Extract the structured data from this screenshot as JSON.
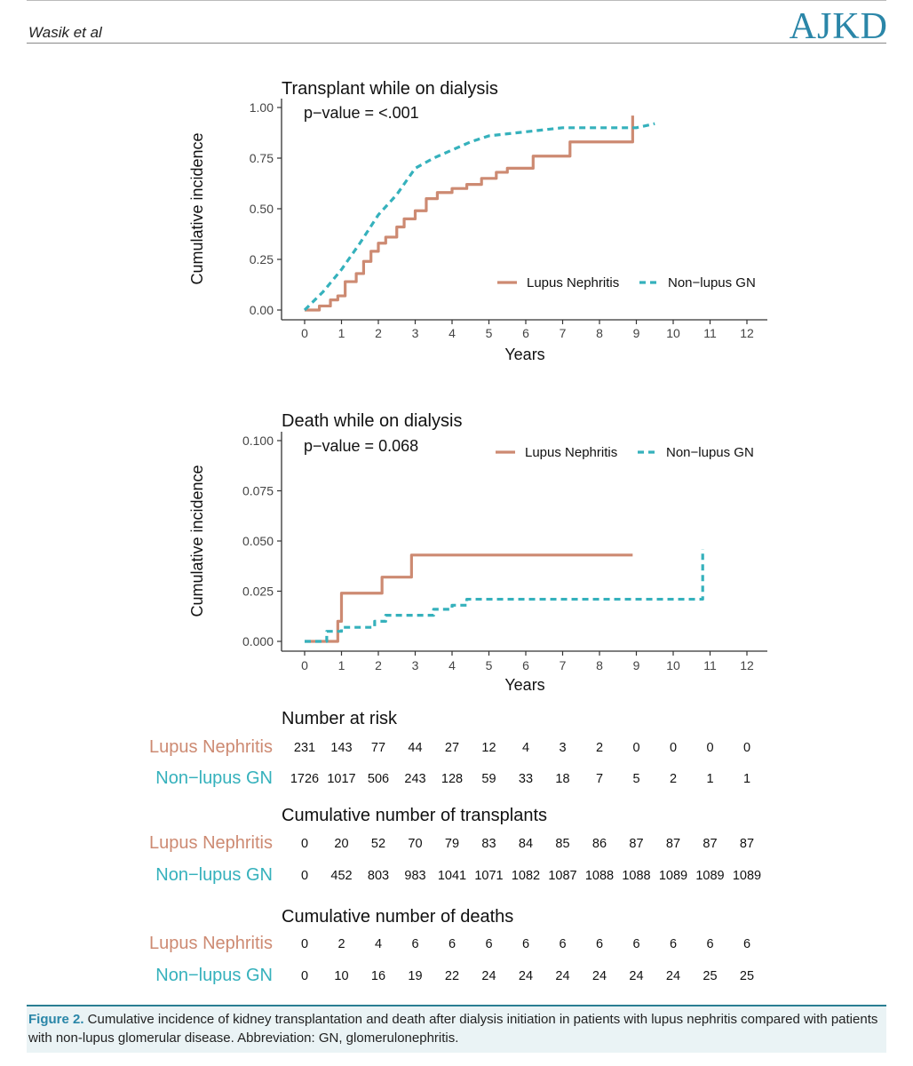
{
  "header": {
    "author": "Wasik et al",
    "journal": "AJKD"
  },
  "colors": {
    "lupus": "#cd8a72",
    "nonlupus": "#35b1bc",
    "axis": "#333333"
  },
  "chart_data": [
    {
      "type": "line",
      "title": "Transplant while on dialysis",
      "annotation": "p−value = <.001",
      "xlabel": "Years",
      "ylabel": "Cumulative incidence",
      "xlim": [
        0,
        12
      ],
      "ylim": [
        0,
        1
      ],
      "xticks": [
        "0",
        "1",
        "2",
        "3",
        "4",
        "5",
        "6",
        "7",
        "8",
        "9",
        "10",
        "11",
        "12"
      ],
      "yticks": [
        "0.00",
        "0.25",
        "0.50",
        "0.75",
        "1.00"
      ],
      "legend_position": "bottom-right",
      "series": [
        {
          "name": "Lupus Nephritis",
          "style": "solid",
          "step": true,
          "points": [
            [
              0,
              0
            ],
            [
              0.4,
              0.02
            ],
            [
              0.7,
              0.05
            ],
            [
              0.9,
              0.07
            ],
            [
              1.1,
              0.14
            ],
            [
              1.4,
              0.18
            ],
            [
              1.6,
              0.24
            ],
            [
              1.8,
              0.29
            ],
            [
              2.0,
              0.33
            ],
            [
              2.2,
              0.36
            ],
            [
              2.5,
              0.41
            ],
            [
              2.7,
              0.45
            ],
            [
              3.0,
              0.49
            ],
            [
              3.3,
              0.55
            ],
            [
              3.6,
              0.58
            ],
            [
              4.0,
              0.6
            ],
            [
              4.4,
              0.62
            ],
            [
              4.8,
              0.65
            ],
            [
              5.2,
              0.68
            ],
            [
              5.5,
              0.7
            ],
            [
              6.2,
              0.76
            ],
            [
              7.2,
              0.83
            ],
            [
              8.9,
              0.83
            ],
            [
              8.9,
              0.96
            ]
          ]
        },
        {
          "name": "Non−lupus GN",
          "style": "dashed",
          "step": false,
          "points": [
            [
              0,
              0
            ],
            [
              0.5,
              0.09
            ],
            [
              1.0,
              0.2
            ],
            [
              1.5,
              0.33
            ],
            [
              2.0,
              0.47
            ],
            [
              2.5,
              0.57
            ],
            [
              3.0,
              0.7
            ],
            [
              3.5,
              0.75
            ],
            [
              4.0,
              0.79
            ],
            [
              4.5,
              0.83
            ],
            [
              5.0,
              0.86
            ],
            [
              5.5,
              0.87
            ],
            [
              6.0,
              0.88
            ],
            [
              6.5,
              0.89
            ],
            [
              7.0,
              0.9
            ],
            [
              8.0,
              0.9
            ],
            [
              9.0,
              0.9
            ],
            [
              9.5,
              0.92
            ]
          ]
        }
      ]
    },
    {
      "type": "line",
      "title": "Death while on dialysis",
      "annotation": "p−value = 0.068",
      "xlabel": "Years",
      "ylabel": "Cumulative incidence",
      "xlim": [
        0,
        12
      ],
      "ylim": [
        0,
        0.1
      ],
      "xticks": [
        "0",
        "1",
        "2",
        "3",
        "4",
        "5",
        "6",
        "7",
        "8",
        "9",
        "10",
        "11",
        "12"
      ],
      "yticks": [
        "0.000",
        "0.025",
        "0.050",
        "0.075",
        "0.100"
      ],
      "legend_position": "top-right",
      "series": [
        {
          "name": "Lupus Nephritis",
          "style": "solid",
          "step": true,
          "points": [
            [
              0,
              0
            ],
            [
              0.9,
              0
            ],
            [
              0.9,
              0.01
            ],
            [
              1.0,
              0.01
            ],
            [
              1.0,
              0.024
            ],
            [
              2.1,
              0.024
            ],
            [
              2.1,
              0.032
            ],
            [
              2.9,
              0.032
            ],
            [
              2.9,
              0.043
            ],
            [
              8.9,
              0.043
            ]
          ]
        },
        {
          "name": "Non−lupus GN",
          "style": "dashed",
          "step": true,
          "points": [
            [
              0,
              0
            ],
            [
              0.6,
              0.005
            ],
            [
              1.0,
              0.007
            ],
            [
              1.7,
              0.007
            ],
            [
              1.9,
              0.01
            ],
            [
              2.2,
              0.013
            ],
            [
              3.2,
              0.013
            ],
            [
              3.5,
              0.016
            ],
            [
              4.0,
              0.018
            ],
            [
              4.4,
              0.021
            ],
            [
              10.8,
              0.021
            ],
            [
              10.8,
              0.046
            ]
          ]
        }
      ]
    }
  ],
  "risk_tables": [
    {
      "title": "Number at risk",
      "rows": [
        {
          "label": "Lupus Nephritis",
          "group": "lupus",
          "values": [
            "231",
            "143",
            "77",
            "44",
            "27",
            "12",
            "4",
            "3",
            "2",
            "0",
            "0",
            "0",
            "0"
          ]
        },
        {
          "label": "Non−lupus GN",
          "group": "nonlupus",
          "values": [
            "1726",
            "1017",
            "506",
            "243",
            "128",
            "59",
            "33",
            "18",
            "7",
            "5",
            "2",
            "1",
            "1"
          ]
        }
      ]
    },
    {
      "title": "Cumulative number of transplants",
      "rows": [
        {
          "label": "Lupus Nephritis",
          "group": "lupus",
          "values": [
            "0",
            "20",
            "52",
            "70",
            "79",
            "83",
            "84",
            "85",
            "86",
            "87",
            "87",
            "87",
            "87"
          ]
        },
        {
          "label": "Non−lupus GN",
          "group": "nonlupus",
          "values": [
            "0",
            "452",
            "803",
            "983",
            "1041",
            "1071",
            "1082",
            "1087",
            "1088",
            "1088",
            "1089",
            "1089",
            "1089"
          ]
        }
      ]
    },
    {
      "title": "Cumulative number of deaths",
      "rows": [
        {
          "label": "Lupus Nephritis",
          "group": "lupus",
          "values": [
            "0",
            "2",
            "4",
            "6",
            "6",
            "6",
            "6",
            "6",
            "6",
            "6",
            "6",
            "6",
            "6"
          ]
        },
        {
          "label": "Non−lupus GN",
          "group": "nonlupus",
          "values": [
            "0",
            "10",
            "16",
            "19",
            "22",
            "24",
            "24",
            "24",
            "24",
            "24",
            "24",
            "25",
            "25"
          ]
        }
      ]
    }
  ],
  "caption": {
    "label": "Figure 2.",
    "text": " Cumulative incidence of kidney transplantation and death after dialysis initiation in patients with lupus nephritis compared with patients with non-lupus glomerular disease. Abbreviation: GN, glomerulonephritis."
  }
}
